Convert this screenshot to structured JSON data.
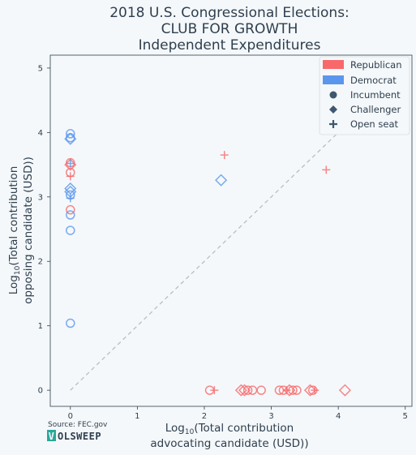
{
  "chart_data": {
    "type": "scatter",
    "title_lines": [
      "2018 U.S. Congressional Elections:",
      "CLUB FOR GROWTH",
      "Independent Expenditures"
    ],
    "xlabel_pre": "Log",
    "xlabel_sub": "10",
    "xlabel_post": "(Total contribution",
    "xlabel_line2": "advocating candidate (USD))",
    "ylabel_pre": "Log",
    "ylabel_sub": "10",
    "ylabel_post": "(Total contribution",
    "ylabel_line2": "opposing candidate (USD))",
    "xlim": [
      -0.3,
      5.1
    ],
    "ylim": [
      -0.25,
      5.2
    ],
    "xticks": [
      0,
      1,
      2,
      3,
      4,
      5
    ],
    "yticks": [
      0,
      1,
      2,
      3,
      4,
      5
    ],
    "grid": false,
    "diagonal": true,
    "legend_position": "top-right",
    "legend": {
      "parties": [
        {
          "label": "Republican",
          "color": "#f8696b"
        },
        {
          "label": "Democrat",
          "color": "#5b96ee"
        }
      ],
      "statuses": [
        {
          "label": "Incumbent",
          "marker": "circle"
        },
        {
          "label": "Challenger",
          "marker": "diamond"
        },
        {
          "label": "Open seat",
          "marker": "plus"
        }
      ]
    },
    "points": [
      {
        "x": 0,
        "y": 3.98,
        "party": "D",
        "status": "I"
      },
      {
        "x": 0,
        "y": 3.92,
        "party": "D",
        "status": "I"
      },
      {
        "x": 0,
        "y": 3.9,
        "party": "D",
        "status": "C"
      },
      {
        "x": 0,
        "y": 3.53,
        "party": "R",
        "status": "I"
      },
      {
        "x": 0,
        "y": 3.5,
        "party": "R",
        "status": "C"
      },
      {
        "x": 0,
        "y": 3.52,
        "party": "D",
        "status": "O"
      },
      {
        "x": 0,
        "y": 3.38,
        "party": "R",
        "status": "I"
      },
      {
        "x": 0,
        "y": 3.32,
        "party": "R",
        "status": "O"
      },
      {
        "x": 0,
        "y": 3.13,
        "party": "D",
        "status": "C"
      },
      {
        "x": 0,
        "y": 3.08,
        "party": "D",
        "status": "C"
      },
      {
        "x": 0,
        "y": 3.03,
        "party": "D",
        "status": "I"
      },
      {
        "x": 0,
        "y": 2.98,
        "party": "D",
        "status": "O"
      },
      {
        "x": 0,
        "y": 2.8,
        "party": "R",
        "status": "I"
      },
      {
        "x": 0,
        "y": 2.72,
        "party": "D",
        "status": "I"
      },
      {
        "x": 0,
        "y": 2.48,
        "party": "D",
        "status": "I"
      },
      {
        "x": 0,
        "y": 1.04,
        "party": "D",
        "status": "I"
      },
      {
        "x": 2.25,
        "y": 3.26,
        "party": "D",
        "status": "C"
      },
      {
        "x": 2.3,
        "y": 3.65,
        "party": "R",
        "status": "O"
      },
      {
        "x": 3.82,
        "y": 3.42,
        "party": "R",
        "status": "O"
      },
      {
        "x": 2.08,
        "y": 0,
        "party": "R",
        "status": "I"
      },
      {
        "x": 2.15,
        "y": 0,
        "party": "R",
        "status": "O"
      },
      {
        "x": 2.55,
        "y": 0,
        "party": "R",
        "status": "C"
      },
      {
        "x": 2.6,
        "y": 0,
        "party": "R",
        "status": "C"
      },
      {
        "x": 2.65,
        "y": 0,
        "party": "R",
        "status": "I"
      },
      {
        "x": 2.72,
        "y": 0,
        "party": "R",
        "status": "I"
      },
      {
        "x": 2.85,
        "y": 0,
        "party": "R",
        "status": "I"
      },
      {
        "x": 3.12,
        "y": 0,
        "party": "R",
        "status": "I"
      },
      {
        "x": 3.18,
        "y": 0,
        "party": "R",
        "status": "I"
      },
      {
        "x": 3.23,
        "y": 0,
        "party": "R",
        "status": "O"
      },
      {
        "x": 3.27,
        "y": 0,
        "party": "R",
        "status": "C"
      },
      {
        "x": 3.32,
        "y": 0,
        "party": "R",
        "status": "I"
      },
      {
        "x": 3.38,
        "y": 0,
        "party": "R",
        "status": "I"
      },
      {
        "x": 3.58,
        "y": 0,
        "party": "R",
        "status": "C"
      },
      {
        "x": 3.62,
        "y": 0,
        "party": "R",
        "status": "I"
      },
      {
        "x": 3.65,
        "y": 0,
        "party": "R",
        "status": "O"
      },
      {
        "x": 4.1,
        "y": 0,
        "party": "R",
        "status": "C"
      }
    ]
  },
  "footer": {
    "source": "Source: FEC.gov",
    "brand_badge": "V",
    "brand_rest": "OLSWEEP"
  }
}
